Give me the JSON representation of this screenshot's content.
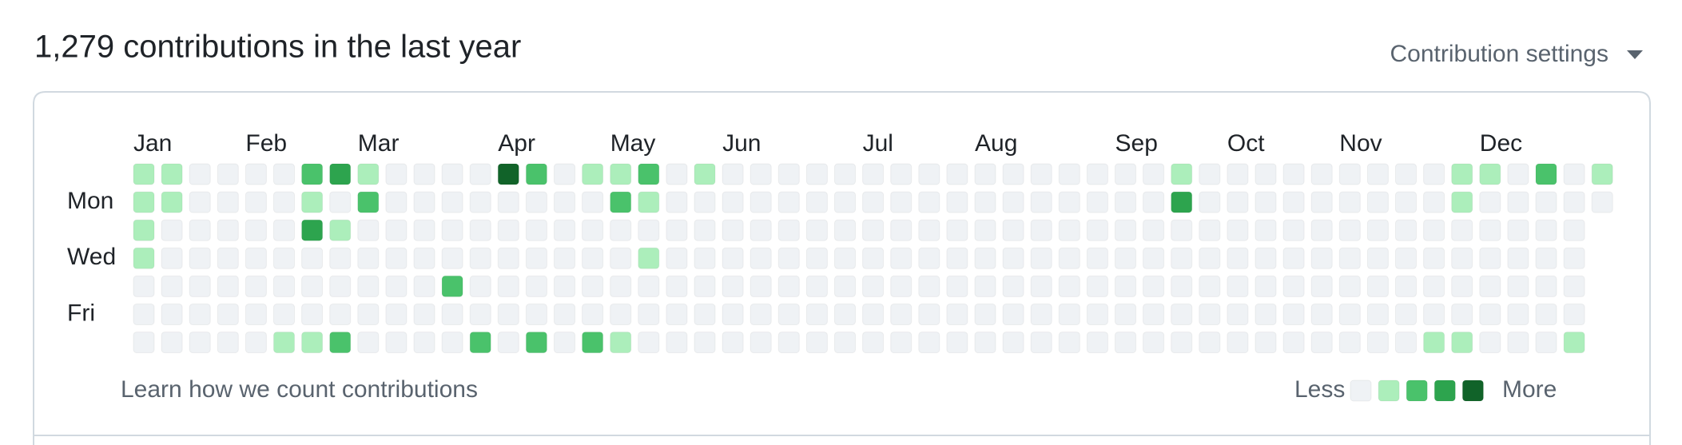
{
  "header": {
    "title": "1,279 contributions in the last year",
    "settings": "Contribution settings"
  },
  "graph": {
    "months": [
      "Jan",
      "Feb",
      "Mar",
      "Apr",
      "May",
      "Jun",
      "Jul",
      "Aug",
      "Sep",
      "Oct",
      "Nov",
      "Dec"
    ],
    "day_labels": [
      "Mon",
      "Wed",
      "Fri"
    ],
    "level_colors": [
      "#eff2f5",
      "#aceebb",
      "#4ac26b",
      "#2da44e",
      "#116329"
    ],
    "days": [
      [
        1,
        1,
        0,
        0,
        0,
        0,
        2,
        3,
        1,
        0,
        0,
        0,
        0,
        4,
        2,
        0,
        1,
        1,
        2,
        0,
        1,
        0,
        0,
        0,
        0,
        0,
        0,
        0,
        0,
        0,
        0,
        0,
        0,
        0,
        0,
        0,
        0,
        1,
        0,
        0,
        0,
        0,
        0,
        0,
        0,
        0,
        0,
        1,
        1,
        0,
        2,
        0,
        1
      ],
      [
        1,
        1,
        0,
        0,
        0,
        0,
        1,
        0,
        2,
        0,
        0,
        0,
        0,
        0,
        0,
        0,
        0,
        2,
        1,
        0,
        0,
        0,
        0,
        0,
        0,
        0,
        0,
        0,
        0,
        0,
        0,
        0,
        0,
        0,
        0,
        0,
        0,
        3,
        0,
        0,
        0,
        0,
        0,
        0,
        0,
        0,
        0,
        1,
        0,
        0,
        0,
        0,
        0
      ],
      [
        1,
        0,
        0,
        0,
        0,
        0,
        3,
        1,
        0,
        0,
        0,
        0,
        0,
        0,
        0,
        0,
        0,
        0,
        0,
        0,
        0,
        0,
        0,
        0,
        0,
        0,
        0,
        0,
        0,
        0,
        0,
        0,
        0,
        0,
        0,
        0,
        0,
        0,
        0,
        0,
        0,
        0,
        0,
        0,
        0,
        0,
        0,
        0,
        0,
        0,
        0,
        0
      ],
      [
        1,
        0,
        0,
        0,
        0,
        0,
        0,
        0,
        0,
        0,
        0,
        0,
        0,
        0,
        0,
        0,
        0,
        0,
        1,
        0,
        0,
        0,
        0,
        0,
        0,
        0,
        0,
        0,
        0,
        0,
        0,
        0,
        0,
        0,
        0,
        0,
        0,
        0,
        0,
        0,
        0,
        0,
        0,
        0,
        0,
        0,
        0,
        0,
        0,
        0,
        0,
        0
      ],
      [
        0,
        0,
        0,
        0,
        0,
        0,
        0,
        0,
        0,
        0,
        0,
        2,
        0,
        0,
        0,
        0,
        0,
        0,
        0,
        0,
        0,
        0,
        0,
        0,
        0,
        0,
        0,
        0,
        0,
        0,
        0,
        0,
        0,
        0,
        0,
        0,
        0,
        0,
        0,
        0,
        0,
        0,
        0,
        0,
        0,
        0,
        0,
        0,
        0,
        0,
        0,
        0
      ],
      [
        0,
        0,
        0,
        0,
        0,
        0,
        0,
        0,
        0,
        0,
        0,
        0,
        0,
        0,
        0,
        0,
        0,
        0,
        0,
        0,
        0,
        0,
        0,
        0,
        0,
        0,
        0,
        0,
        0,
        0,
        0,
        0,
        0,
        0,
        0,
        0,
        0,
        0,
        0,
        0,
        0,
        0,
        0,
        0,
        0,
        0,
        0,
        0,
        0,
        0,
        0,
        0
      ],
      [
        0,
        0,
        0,
        0,
        0,
        1,
        1,
        2,
        0,
        0,
        0,
        0,
        2,
        0,
        2,
        0,
        2,
        1,
        0,
        0,
        0,
        0,
        0,
        0,
        0,
        0,
        0,
        0,
        0,
        0,
        0,
        0,
        0,
        0,
        0,
        0,
        0,
        0,
        0,
        0,
        0,
        0,
        0,
        0,
        0,
        0,
        1,
        1,
        0,
        0,
        0,
        1
      ]
    ],
    "footer_link": "Learn how we count contributions",
    "legend_less": "Less",
    "legend_more": "More"
  }
}
